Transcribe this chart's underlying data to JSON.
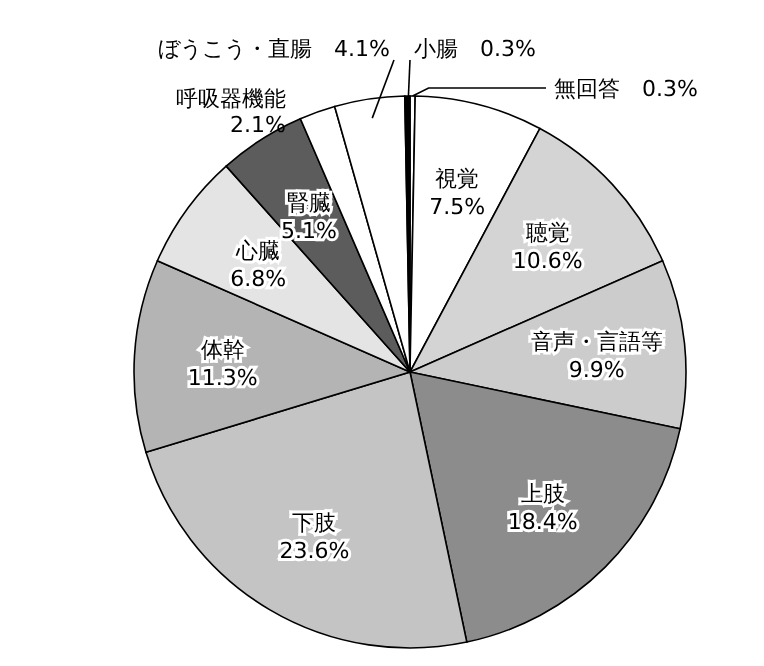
{
  "chart_data": {
    "type": "pie",
    "categories": [
      "無回答",
      "視覚",
      "聴覚",
      "音声・言語等",
      "上肢",
      "下肢",
      "体幹",
      "心臓",
      "腎臓",
      "呼吸器機能",
      "ぼうこう・直腸",
      "小腸"
    ],
    "values": [
      0.3,
      7.5,
      10.6,
      9.9,
      18.4,
      23.6,
      11.3,
      6.8,
      5.1,
      2.1,
      4.1,
      0.3
    ],
    "value_labels": [
      "0.3%",
      "7.5%",
      "10.6%",
      "9.9%",
      "18.4%",
      "23.6%",
      "11.3%",
      "6.8%",
      "5.1%",
      "2.1%",
      "4.1%",
      "0.3%"
    ],
    "colors": [
      "#ffffff",
      "#ffffff",
      "#d4d4d4",
      "#cccccc",
      "#8c8c8c",
      "#c4c4c4",
      "#b4b4b4",
      "#e4e4e4",
      "#5c5c5c",
      "#ffffff",
      "#ffffff",
      "#000000"
    ],
    "legend": false
  }
}
